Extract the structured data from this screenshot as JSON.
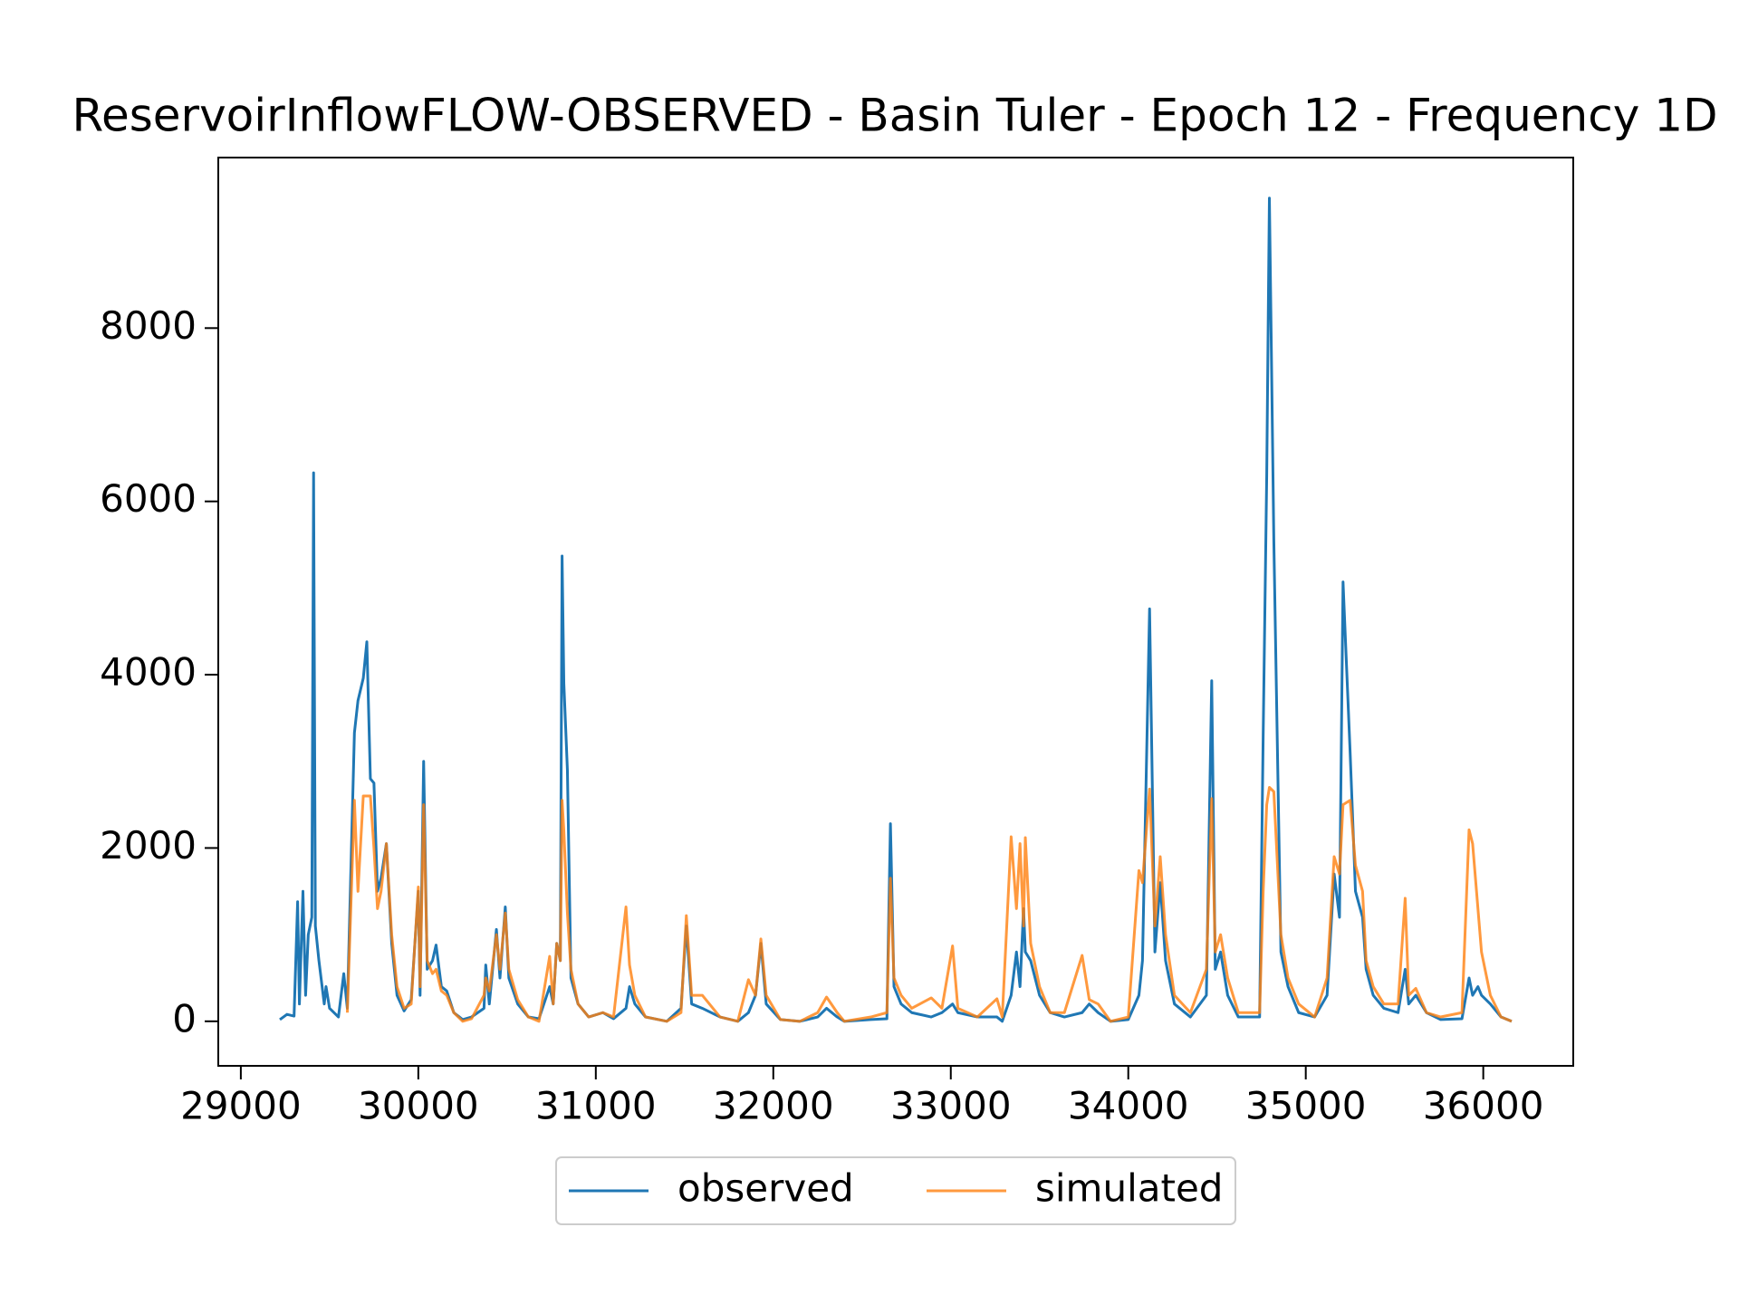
{
  "chart_data": {
    "type": "line",
    "title": "ReservoirInflowFLOW-OBSERVED - Basin Tuler - Epoch 12 - Frequency 1D",
    "x": [
      29220,
      29260,
      29300,
      29320,
      29330,
      29350,
      29365,
      29380,
      29400,
      29410,
      29420,
      29440,
      29470,
      29480,
      29500,
      29550,
      29580,
      29600,
      29640,
      29660,
      29690,
      29710,
      29730,
      29750,
      29770,
      29790,
      29820,
      29850,
      29880,
      29920,
      29960,
      30000,
      30010,
      30030,
      30050,
      30080,
      30100,
      30130,
      30160,
      30200,
      30250,
      30300,
      30370,
      30380,
      30400,
      30440,
      30460,
      30490,
      30510,
      30560,
      30620,
      30680,
      30740,
      30760,
      30780,
      30800,
      30810,
      30820,
      30840,
      30860,
      30900,
      30960,
      31040,
      31100,
      31170,
      31190,
      31220,
      31280,
      31400,
      31480,
      31510,
      31540,
      31600,
      31700,
      31800,
      31860,
      31900,
      31930,
      31960,
      32040,
      32150,
      32250,
      32300,
      32360,
      32400,
      32550,
      32640,
      32660,
      32680,
      32720,
      32780,
      32890,
      32950,
      33010,
      33040,
      33150,
      33260,
      33290,
      33340,
      33370,
      33390,
      33410,
      33420,
      33450,
      33500,
      33560,
      33640,
      33740,
      33780,
      33830,
      33900,
      34000,
      34060,
      34080,
      34120,
      34150,
      34180,
      34210,
      34260,
      34350,
      34440,
      34470,
      34490,
      34520,
      34560,
      34620,
      34740,
      34760,
      34780,
      34795,
      34820,
      34860,
      34900,
      34960,
      35050,
      35120,
      35160,
      35190,
      35210,
      35250,
      35280,
      35320,
      35340,
      35380,
      35440,
      35520,
      35560,
      35580,
      35620,
      35680,
      35760,
      35880,
      35920,
      35940,
      35970,
      35990,
      36040,
      36100,
      36160
    ],
    "series": [
      {
        "name": "observed",
        "color": "#1f77b4",
        "values": [
          20,
          80,
          60,
          1380,
          200,
          1500,
          300,
          1000,
          1200,
          6330,
          1100,
          700,
          200,
          400,
          150,
          50,
          550,
          150,
          3330,
          3700,
          3960,
          4380,
          2800,
          2750,
          1500,
          1650,
          2050,
          900,
          300,
          120,
          250,
          1500,
          300,
          3000,
          600,
          700,
          880,
          400,
          350,
          100,
          20,
          50,
          150,
          650,
          200,
          1060,
          500,
          1320,
          500,
          200,
          50,
          30,
          400,
          200,
          900,
          700,
          5370,
          3900,
          2900,
          500,
          200,
          50,
          100,
          30,
          150,
          400,
          200,
          50,
          0,
          150,
          1100,
          200,
          150,
          50,
          0,
          100,
          300,
          900,
          200,
          20,
          0,
          50,
          150,
          50,
          0,
          20,
          30,
          2280,
          400,
          200,
          100,
          50,
          100,
          200,
          100,
          50,
          50,
          0,
          300,
          800,
          400,
          1300,
          800,
          700,
          300,
          100,
          50,
          100,
          200,
          100,
          0,
          20,
          300,
          700,
          4760,
          800,
          1600,
          700,
          200,
          50,
          300,
          3930,
          600,
          800,
          300,
          50,
          50,
          3300,
          6300,
          9500,
          5550,
          800,
          400,
          100,
          50,
          300,
          1700,
          1200,
          5070,
          3100,
          1500,
          1200,
          600,
          300,
          150,
          100,
          600,
          200,
          300,
          100,
          20,
          30,
          500,
          300,
          400,
          300,
          200,
          50,
          0
        ]
      },
      {
        "name": "simulated",
        "color": "#ff7f0e",
        "values": [
          null,
          null,
          null,
          null,
          null,
          null,
          null,
          null,
          null,
          null,
          null,
          null,
          null,
          null,
          null,
          null,
          null,
          100,
          2550,
          1500,
          2600,
          2600,
          2600,
          2000,
          1300,
          1500,
          2050,
          1000,
          400,
          150,
          200,
          1550,
          400,
          2500,
          700,
          550,
          600,
          350,
          300,
          100,
          0,
          30,
          300,
          500,
          350,
          1000,
          600,
          1250,
          600,
          250,
          50,
          0,
          750,
          200,
          900,
          700,
          2550,
          2200,
          1250,
          600,
          200,
          50,
          100,
          50,
          1320,
          650,
          300,
          50,
          0,
          100,
          1220,
          300,
          300,
          50,
          0,
          480,
          300,
          950,
          300,
          20,
          0,
          100,
          280,
          100,
          0,
          50,
          100,
          1650,
          500,
          300,
          150,
          270,
          150,
          870,
          150,
          50,
          260,
          50,
          2130,
          1300,
          2050,
          1100,
          2120,
          900,
          400,
          100,
          100,
          760,
          250,
          200,
          0,
          50,
          1740,
          1600,
          2680,
          1100,
          1900,
          1000,
          300,
          100,
          600,
          2570,
          800,
          1000,
          500,
          100,
          100,
          1500,
          2500,
          2700,
          2650,
          1000,
          500,
          200,
          50,
          500,
          1900,
          1700,
          2500,
          2550,
          1800,
          1500,
          700,
          400,
          200,
          200,
          1420,
          300,
          380,
          100,
          50,
          100,
          2210,
          2050,
          1300,
          800,
          300,
          50,
          0
        ]
      }
    ],
    "xlim": [
      28873,
      36507
    ],
    "ylim": [
      -514,
      9968
    ],
    "xticks": [
      29000,
      30000,
      31000,
      32000,
      33000,
      34000,
      35000,
      36000
    ],
    "yticks": [
      0,
      2000,
      4000,
      6000,
      8000
    ],
    "legend": "lower center outside"
  }
}
